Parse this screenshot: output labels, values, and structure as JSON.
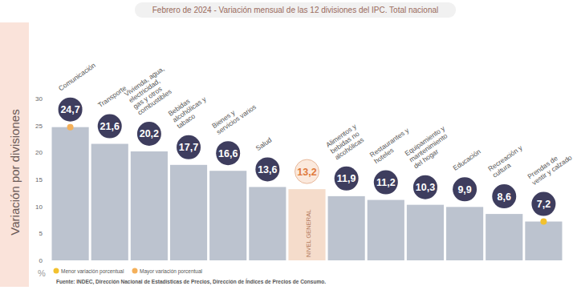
{
  "chart_data": {
    "type": "bar",
    "title": "Febrero de 2024 - Variación mensual de las 12 divisiones del IPC. Total nacional",
    "y_label": "Variación por divisiones",
    "y_unit": "%",
    "source": "Fuente: INDEC, Dirección Nacional de Estadísticas de Precios, Dirección de Índices de Precios de Consumo.",
    "categories": [
      "Comunicación",
      "Transporte",
      "Vivienda, agua, electricidad, gas y otros combustibles",
      "Bebidas alcohólicas y tabaco",
      "Bienes y servicios varios",
      "Salud",
      "NIVEL GENERAL",
      "Alimentos y bebidas no alcohólicas",
      "Restaurantes y hoteles",
      "Equipamiento y mantenimiento del hogar",
      "Educación",
      "Recreación y cultura",
      "Prendas de vestir y calzado"
    ],
    "values": [
      24.7,
      21.6,
      20.2,
      17.7,
      16.6,
      13.6,
      13.2,
      11.9,
      11.2,
      10.3,
      9.9,
      8.6,
      7.2
    ],
    "value_labels": [
      "24,7",
      "21,6",
      "20,2",
      "17,7",
      "16,6",
      "13,6",
      "13,2",
      "11,9",
      "11,2",
      "10,3",
      "9,9",
      "8,6",
      "7,2"
    ],
    "colors": [
      "#bcc3cf",
      "#bcc3cf",
      "#bcc3cf",
      "#bcc3cf",
      "#bcc3cf",
      "#bcc3cf",
      "#f5dccb",
      "#bcc3cf",
      "#bcc3cf",
      "#bcc3cf",
      "#bcc3cf",
      "#bcc3cf",
      "#bcc3cf"
    ],
    "data_labels": true,
    "grid": false,
    "ylim": [
      0,
      30
    ],
    "yticks": [
      0,
      5,
      10,
      15,
      20,
      25,
      30
    ],
    "annotations": [
      {
        "text": "Menor variación porcentual",
        "color": "#f2c12e",
        "category": "Prendas de vestir y calzado"
      },
      {
        "text": "Mayor variación porcentual",
        "color": "#f4b05a",
        "category": "Comunicación"
      }
    ]
  }
}
